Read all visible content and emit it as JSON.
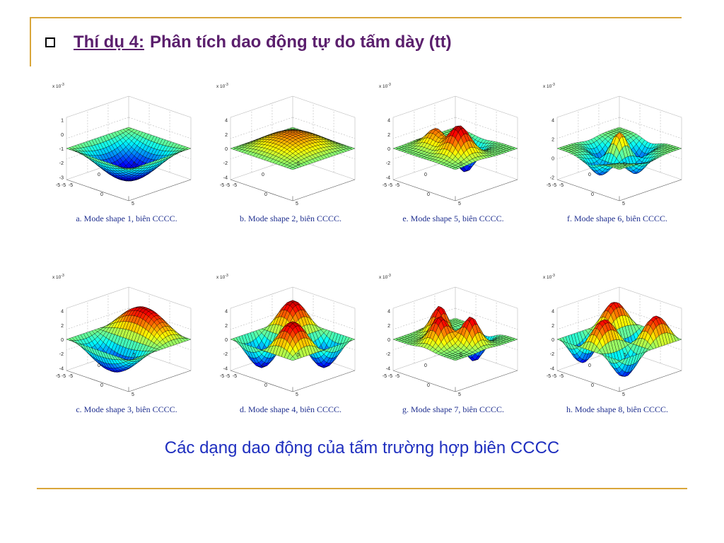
{
  "title": {
    "label": "Thí dụ 4:",
    "text": " Phân tích dao động tự do tấm dày (tt)"
  },
  "footer": "Các dạng dao động của tấm trường hợp biên CCCC",
  "colors": {
    "accent_rule": "#d9a63a",
    "title": "#5b1f6d",
    "caption": "#1f2f8f",
    "footer": "#1f2fbf"
  },
  "panels": [
    {
      "caption": "a. Mode shape 1, biên CCCC.",
      "exp": "x 10",
      "sup": "-3",
      "z_ticks": [
        "1",
        "0",
        "-1",
        "-2",
        "-3"
      ],
      "x_ticks": [
        "-5",
        "0",
        "5"
      ],
      "y_ticks": [
        "-5",
        "0",
        "5"
      ],
      "corner": "-5"
    },
    {
      "caption": "b. Mode shape 2, biên CCCC.",
      "exp": "x 10",
      "sup": "-3",
      "z_ticks": [
        "4",
        "2",
        "0",
        "-2",
        "-4"
      ],
      "x_ticks": [
        "-5",
        "0",
        "5"
      ],
      "y_ticks": [
        "-5",
        "0",
        "5"
      ],
      "corner": "-5"
    },
    {
      "caption": "e. Mode shape 5, biên CCCC.",
      "exp": "x 10",
      "sup": "-3",
      "z_ticks": [
        "4",
        "2",
        "0",
        "-2",
        "-4"
      ],
      "x_ticks": [
        "-5",
        "0",
        "5"
      ],
      "y_ticks": [
        "-5",
        "0",
        "5"
      ],
      "corner": "-5"
    },
    {
      "caption": "f. Mode shape 6, biên CCCC.",
      "exp": "x 10",
      "sup": "-3",
      "z_ticks": [
        "4",
        "2",
        "0",
        "-2"
      ],
      "x_ticks": [
        "-5",
        "0",
        "5"
      ],
      "y_ticks": [
        "-5",
        "0",
        "5"
      ],
      "corner": "-5"
    },
    {
      "caption": "c. Mode shape 3, biên CCCC.",
      "exp": "x 10",
      "sup": "-3",
      "z_ticks": [
        "4",
        "2",
        "0",
        "-2",
        "-4"
      ],
      "x_ticks": [
        "-5",
        "0",
        "5"
      ],
      "y_ticks": [
        "-5",
        "0",
        "5"
      ],
      "corner": "-5"
    },
    {
      "caption": "d. Mode shape 4, biên CCCC.",
      "exp": "x 10",
      "sup": "-3",
      "z_ticks": [
        "4",
        "2",
        "0",
        "-2",
        "-4"
      ],
      "x_ticks": [
        "-5",
        "0",
        "5"
      ],
      "y_ticks": [
        "-5",
        "0",
        "5"
      ],
      "corner": "-5"
    },
    {
      "caption": "g. Mode shape 7, biên CCCC.",
      "exp": "x 10",
      "sup": "-3",
      "z_ticks": [
        "4",
        "2",
        "0",
        "-2",
        "-4"
      ],
      "x_ticks": [
        "-5",
        "0",
        "5"
      ],
      "y_ticks": [
        "-5",
        "0",
        "5"
      ],
      "corner": "-5"
    },
    {
      "caption": "h. Mode shape 8, biên CCCC.",
      "exp": "x 10",
      "sup": "-3",
      "z_ticks": [
        "4",
        "2",
        "0",
        "-2",
        "-4"
      ],
      "x_ticks": [
        "-5",
        "0",
        "5"
      ],
      "y_ticks": [
        "-5",
        "0",
        "5"
      ],
      "corner": "-5"
    }
  ]
}
